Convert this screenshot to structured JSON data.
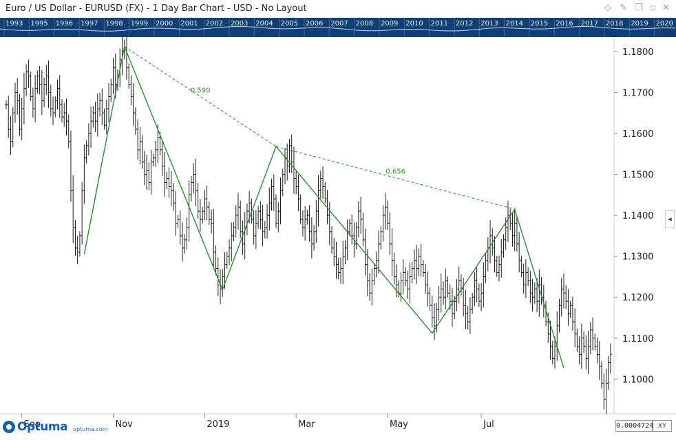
{
  "window": {
    "title": "Euro / US Dollar - EURUSD (FX) - 1 Day Bar Chart - USD - No Layout",
    "icons": [
      "diamond-icon",
      "pin-icon",
      "restore-icon",
      "close-icon"
    ]
  },
  "overview_years": [
    "1993",
    "1995",
    "1996",
    "1997",
    "1998",
    "1999",
    "2000",
    "2001",
    "2002",
    "2003",
    "2004",
    "2005",
    "2006",
    "2007",
    "2008",
    "2009",
    "2010",
    "2011",
    "2012",
    "2013",
    "2014",
    "2015",
    "2016",
    "2017",
    "2018",
    "2019",
    "2020"
  ],
  "footer": {
    "logo_text": "Optuma",
    "logo_url": "optuma.com",
    "readout": "0.0004724",
    "xy_label": "XY"
  },
  "colors": {
    "bars": "#1a1a1a",
    "zigzag": "#2e8b2e",
    "overview_bg": "#0f3f74"
  },
  "chart_data": {
    "type": "bar",
    "subtype": "ohlc",
    "x_tick_labels": [
      "Sep",
      "Nov",
      "2019",
      "Mar",
      "May",
      "Jul"
    ],
    "y_ticks": [
      1.18,
      1.17,
      1.16,
      1.15,
      1.14,
      1.13,
      1.12,
      1.11,
      1.1
    ],
    "y_tick_labels": [
      "1.1800",
      "1.1700",
      "1.1600",
      "1.1500",
      "1.1400",
      "1.1300",
      "1.1200",
      "1.1100",
      "1.1000"
    ],
    "ylim": [
      1.0915,
      1.1835
    ],
    "closes": [
      1.167,
      1.161,
      1.158,
      1.165,
      1.17,
      1.168,
      1.161,
      1.166,
      1.171,
      1.175,
      1.174,
      1.169,
      1.166,
      1.171,
      1.174,
      1.172,
      1.168,
      1.172,
      1.174,
      1.17,
      1.166,
      1.165,
      1.168,
      1.171,
      1.167,
      1.164,
      1.165,
      1.163,
      1.158,
      1.146,
      1.137,
      1.132,
      1.131,
      1.135,
      1.146,
      1.154,
      1.157,
      1.16,
      1.163,
      1.165,
      1.163,
      1.166,
      1.168,
      1.165,
      1.162,
      1.166,
      1.169,
      1.172,
      1.176,
      1.172,
      1.174,
      1.178,
      1.18,
      1.181,
      1.176,
      1.172,
      1.169,
      1.165,
      1.161,
      1.156,
      1.158,
      1.153,
      1.15,
      1.151,
      1.148,
      1.153,
      1.154,
      1.156,
      1.159,
      1.156,
      1.152,
      1.148,
      1.149,
      1.147,
      1.146,
      1.143,
      1.138,
      1.139,
      1.135,
      1.132,
      1.134,
      1.137,
      1.145,
      1.148,
      1.15,
      1.146,
      1.141,
      1.139,
      1.141,
      1.144,
      1.142,
      1.139,
      1.138,
      1.131,
      1.127,
      1.123,
      1.122,
      1.125,
      1.128,
      1.13,
      1.132,
      1.135,
      1.137,
      1.14,
      1.142,
      1.136,
      1.133,
      1.137,
      1.141,
      1.143,
      1.139,
      1.135,
      1.138,
      1.141,
      1.139,
      1.136,
      1.137,
      1.14,
      1.143,
      1.147,
      1.144,
      1.138,
      1.141,
      1.146,
      1.15,
      1.154,
      1.152,
      1.157,
      1.153,
      1.149,
      1.147,
      1.144,
      1.139,
      1.137,
      1.139,
      1.14,
      1.136,
      1.133,
      1.136,
      1.141,
      1.146,
      1.149,
      1.147,
      1.144,
      1.14,
      1.136,
      1.132,
      1.13,
      1.128,
      1.126,
      1.127,
      1.13,
      1.132,
      1.136,
      1.138,
      1.135,
      1.133,
      1.137,
      1.141,
      1.139,
      1.134,
      1.128,
      1.124,
      1.121,
      1.124,
      1.127,
      1.129,
      1.133,
      1.136,
      1.14,
      1.142,
      1.138,
      1.133,
      1.129,
      1.125,
      1.123,
      1.121,
      1.124,
      1.126,
      1.124,
      1.122,
      1.125,
      1.127,
      1.129,
      1.127,
      1.13,
      1.128,
      1.126,
      1.123,
      1.121,
      1.118,
      1.115,
      1.113,
      1.117,
      1.12,
      1.122,
      1.12,
      1.124,
      1.121,
      1.119,
      1.116,
      1.119,
      1.122,
      1.124,
      1.122,
      1.118,
      1.116,
      1.114,
      1.117,
      1.12,
      1.124,
      1.122,
      1.119,
      1.121,
      1.125,
      1.129,
      1.132,
      1.135,
      1.132,
      1.129,
      1.126,
      1.128,
      1.131,
      1.134,
      1.137,
      1.14,
      1.138,
      1.135,
      1.138,
      1.133,
      1.129,
      1.126,
      1.123,
      1.126,
      1.124,
      1.121,
      1.12,
      1.122,
      1.119,
      1.123,
      1.12,
      1.118,
      1.114,
      1.111,
      1.108,
      1.105,
      1.108,
      1.113,
      1.118,
      1.122,
      1.121,
      1.119,
      1.116,
      1.118,
      1.114,
      1.111,
      1.108,
      1.106,
      1.11,
      1.108,
      1.105,
      1.108,
      1.112,
      1.11,
      1.108,
      1.106,
      1.103,
      1.099,
      1.095,
      1.099,
      1.104,
      1.106
    ],
    "zigzag": [
      {
        "index": 35,
        "price": 1.1305
      },
      {
        "index": 53,
        "price": 1.1812
      },
      {
        "index": 97,
        "price": 1.1218
      },
      {
        "index": 121,
        "price": 1.1568
      },
      {
        "index": 191,
        "price": 1.1112
      },
      {
        "index": 228,
        "price": 1.1415
      },
      {
        "index": 250,
        "price": 1.1027
      }
    ],
    "retracements": [
      {
        "from": 1,
        "to": 3,
        "label": "0.590"
      },
      {
        "from": 3,
        "to": 5,
        "label": "0.656"
      }
    ]
  }
}
